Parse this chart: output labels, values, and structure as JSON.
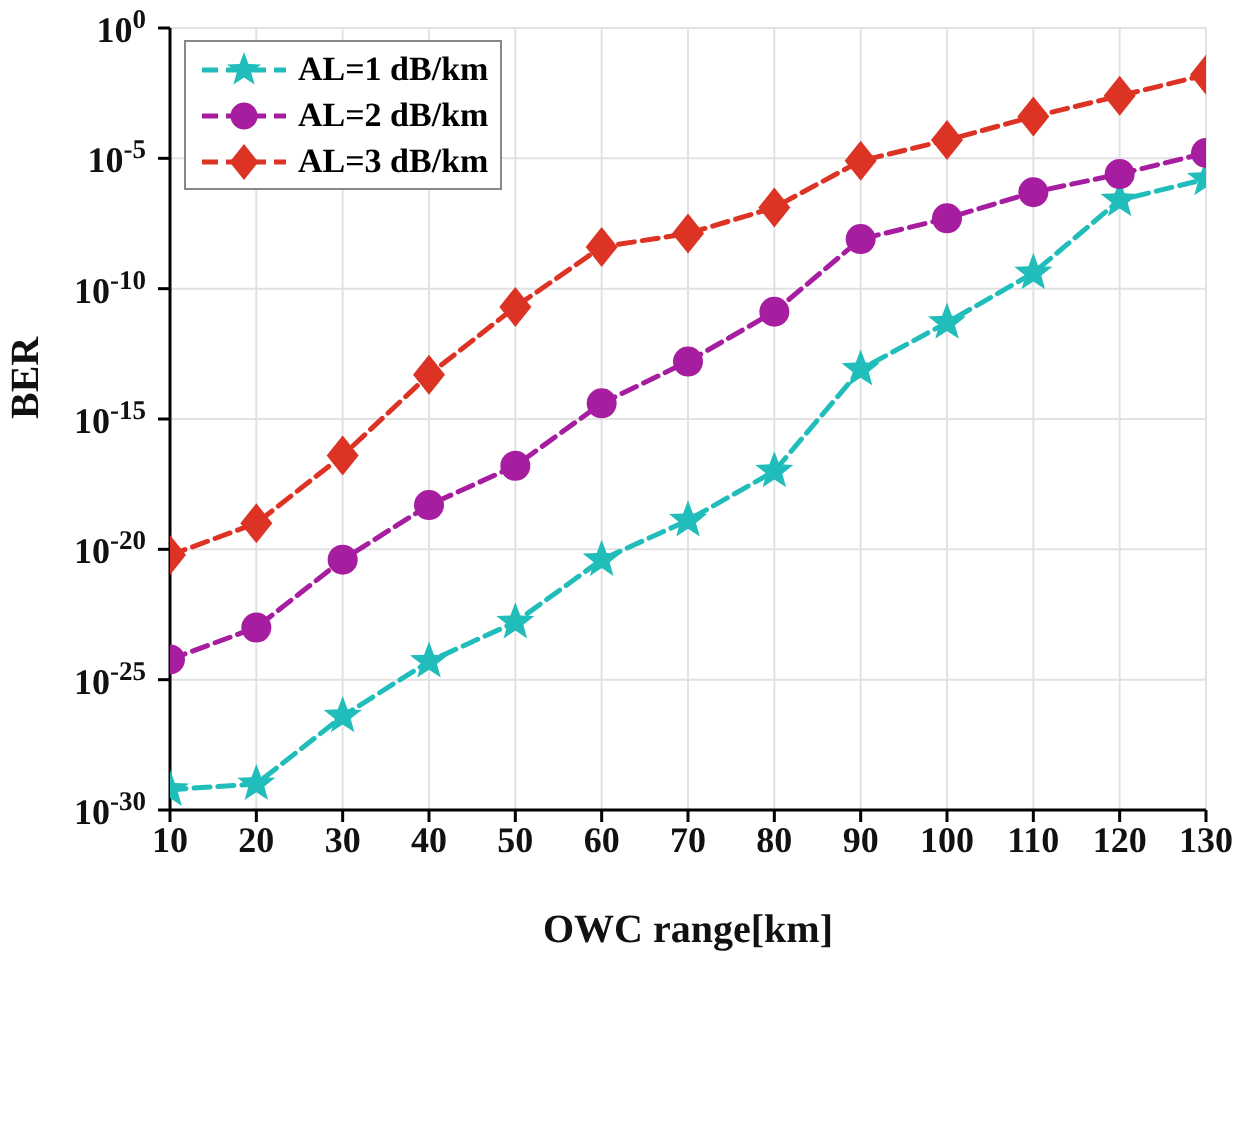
{
  "chart_data": {
    "type": "line",
    "xlabel": "OWC range[km]",
    "ylabel": "BER",
    "log": "y",
    "grid": true,
    "legend": "top left",
    "line_style": "dashed",
    "x": [
      10,
      20,
      30,
      40,
      50,
      60,
      70,
      80,
      90,
      100,
      110,
      120,
      130
    ],
    "xlim": [
      10,
      130
    ],
    "xticks": [
      10,
      20,
      30,
      40,
      50,
      60,
      70,
      80,
      90,
      100,
      110,
      120,
      130
    ],
    "ylim": [
      1e-30,
      1
    ],
    "yticks": [
      {
        "value": 1,
        "label": "10$^{0}$"
      },
      {
        "value": 1e-05,
        "label": "10$^{-5}$"
      },
      {
        "value": 1e-10,
        "label": "10$^{-10}$"
      },
      {
        "value": 1e-15,
        "label": "10$^{-15}$"
      },
      {
        "value": 1e-20,
        "label": "10$^{-20}$"
      },
      {
        "value": 1e-25,
        "label": "10$^{-25}$"
      },
      {
        "value": 1e-30,
        "label": "10$^{-30}$"
      }
    ],
    "series": [
      {
        "name": "AL=1 dB/km",
        "color": "#20bdbb",
        "marker": "star",
        "values": [
          6e-30,
          1e-29,
          4e-27,
          5e-25,
          1.6e-23,
          4e-21,
          1.3e-19,
          1e-17,
          8e-14,
          5e-12,
          4e-10,
          2.5e-07,
          1.6e-06
        ]
      },
      {
        "name": "AL=2 dB/km",
        "color": "#a61e9f",
        "marker": "circle",
        "values": [
          6e-25,
          1e-23,
          4e-21,
          5e-19,
          1.6e-17,
          4e-15,
          1.6e-13,
          1.3e-11,
          8e-09,
          5e-08,
          5e-07,
          2.5e-06,
          1.6e-05
        ]
      },
      {
        "name": "AL=3 dB/km",
        "color": "#dd3325",
        "marker": "diamond",
        "values": [
          6e-21,
          1e-19,
          4e-17,
          5e-14,
          2e-11,
          4e-09,
          1.3e-08,
          1.3e-07,
          8e-06,
          5e-05,
          0.0004,
          0.0025,
          0.016
        ]
      }
    ]
  }
}
